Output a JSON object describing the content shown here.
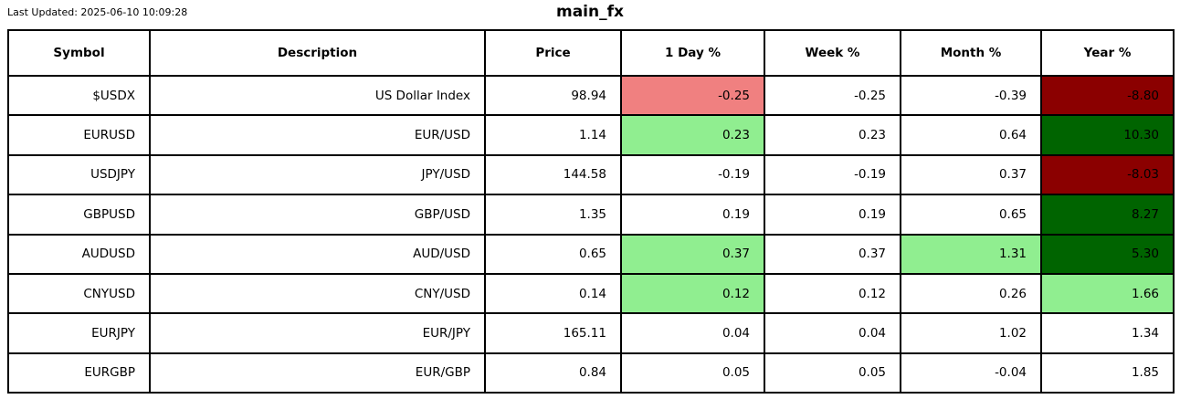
{
  "header": {
    "last_updated": "Last Updated: 2025-06-10 10:09:28",
    "title": "main_fx"
  },
  "colors": {
    "background": "#FFFFFF",
    "border": "#000000",
    "text": "#000000",
    "positive_mild": "#90EE90",
    "positive_strong": "#006400",
    "negative_mild": "#F08080",
    "negative_strong": "#8B0000"
  },
  "chart_data": {
    "type": "table",
    "title": "main_fx",
    "columns": [
      "Symbol",
      "Description",
      "Price",
      "1 Day %",
      "Week %",
      "Month %",
      "Year %"
    ],
    "rows": [
      [
        "$USDX",
        "US Dollar Index",
        "98.94",
        "-0.25",
        "-0.25",
        "-0.39",
        "-8.80"
      ],
      [
        "EURUSD",
        "EUR/USD",
        "1.14",
        "0.23",
        "0.23",
        "0.64",
        "10.30"
      ],
      [
        "USDJPY",
        "JPY/USD",
        "144.58",
        "-0.19",
        "-0.19",
        "0.37",
        "-8.03"
      ],
      [
        "GBPUSD",
        "GBP/USD",
        "1.35",
        "0.19",
        "0.19",
        "0.65",
        "8.27"
      ],
      [
        "AUDUSD",
        "AUD/USD",
        "0.65",
        "0.37",
        "0.37",
        "1.31",
        "5.30"
      ],
      [
        "CNYUSD",
        "CNY/USD",
        "0.14",
        "0.12",
        "0.12",
        "0.26",
        "1.66"
      ],
      [
        "EURJPY",
        "EUR/JPY",
        "165.11",
        "0.04",
        "0.04",
        "1.02",
        "1.34"
      ],
      [
        "EURGBP",
        "EUR/GBP",
        "0.84",
        "0.05",
        "0.05",
        "-0.04",
        "1.85"
      ]
    ],
    "cell_backgrounds": [
      [
        null,
        null,
        null,
        "#F08080",
        null,
        null,
        "#8B0000"
      ],
      [
        null,
        null,
        null,
        "#90EE90",
        null,
        null,
        "#006400"
      ],
      [
        null,
        null,
        null,
        null,
        null,
        null,
        "#8B0000"
      ],
      [
        null,
        null,
        null,
        null,
        null,
        null,
        "#006400"
      ],
      [
        null,
        null,
        null,
        "#90EE90",
        null,
        "#90EE90",
        "#006400"
      ],
      [
        null,
        null,
        null,
        "#90EE90",
        null,
        null,
        "#90EE90"
      ],
      [
        null,
        null,
        null,
        null,
        null,
        null,
        null
      ],
      [
        null,
        null,
        null,
        null,
        null,
        null,
        null
      ]
    ]
  }
}
